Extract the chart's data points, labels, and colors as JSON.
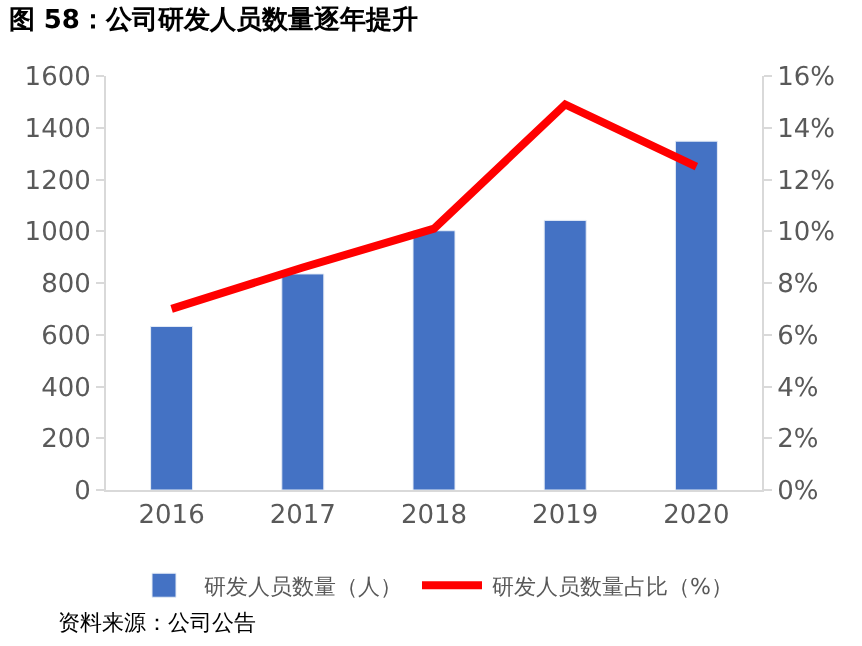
{
  "chart_data": {
    "type": "bar",
    "title": "图 58：公司研发人员数量逐年提升",
    "categories": [
      "2016",
      "2017",
      "2018",
      "2019",
      "2020"
    ],
    "series": [
      {
        "name": "研发人员数量（人）",
        "color": "#4472c4",
        "values": [
          632,
          835,
          1002,
          1042,
          1348
        ]
      },
      {
        "name": "研发人员数量占比（%）",
        "color": "#ff0000",
        "type": "line",
        "axis": "y2",
        "values": [
          7.0,
          8.6,
          10.1,
          14.9,
          12.5
        ]
      }
    ],
    "ylim": [
      0,
      1600
    ],
    "yticks": [
      0,
      200,
      400,
      600,
      800,
      1000,
      1200,
      1400,
      1600
    ],
    "y2lim": [
      0,
      16
    ],
    "y2ticks": [
      {
        "value": 0,
        "label": "0%"
      },
      {
        "value": 2,
        "label": "2%"
      },
      {
        "value": 4,
        "label": "4%"
      },
      {
        "value": 6,
        "label": "6%"
      },
      {
        "value": 8,
        "label": "8%"
      },
      {
        "value": 10,
        "label": "10%"
      },
      {
        "value": 12,
        "label": "12%"
      },
      {
        "value": 14,
        "label": "14%"
      },
      {
        "value": 16,
        "label": "16%"
      }
    ],
    "legend": "bottom",
    "marker": "none",
    "annotations": [
      "资料来源：公司公告"
    ]
  }
}
